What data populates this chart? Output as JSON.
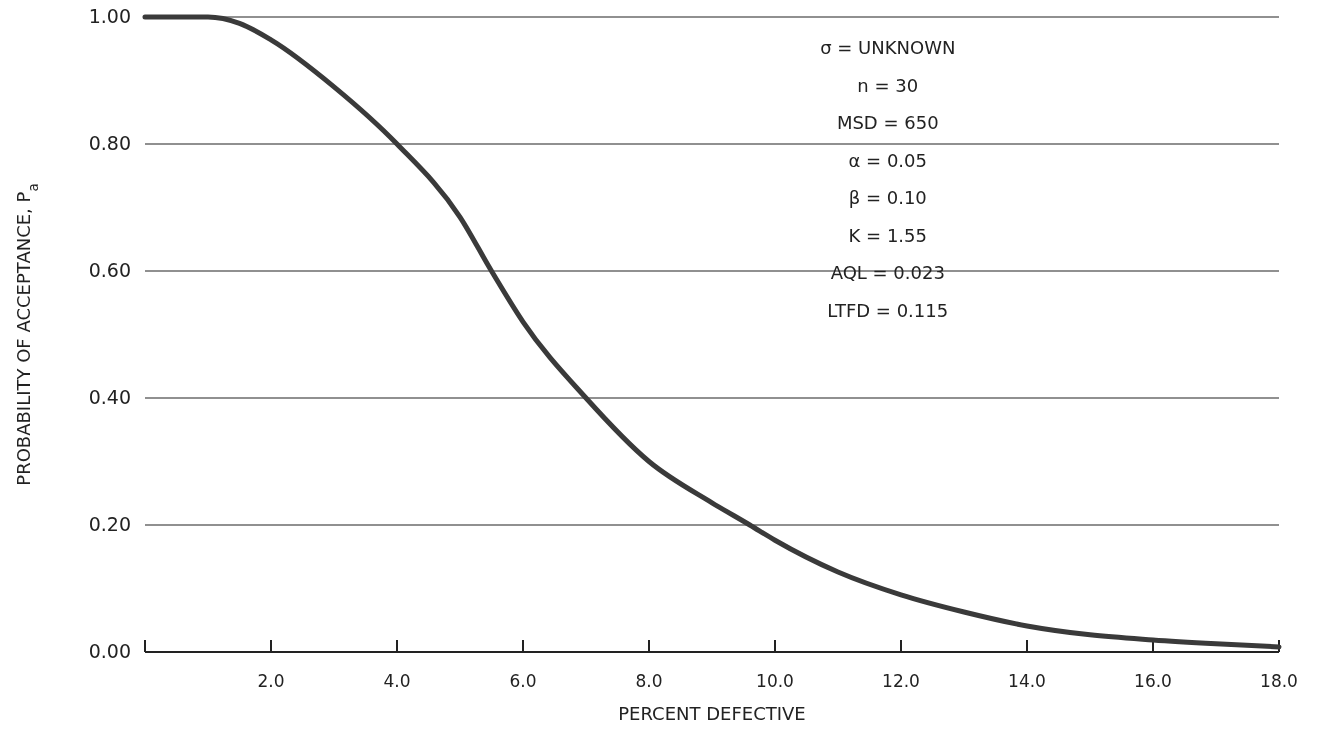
{
  "chart_data": {
    "type": "line",
    "xlabel": "PERCENT DEFECTIVE",
    "ylabel": "PROBABILITY OF ACCEPTANCE, P$_{a}$",
    "x": [
      0,
      1,
      1.5,
      2,
      3,
      4,
      5,
      5.5,
      6,
      7,
      8,
      9,
      9.6,
      10,
      11,
      12,
      13,
      14,
      15,
      16,
      17,
      18
    ],
    "series": [
      {
        "color": "#3a3a3a",
        "values": [
          1.0,
          1.0,
          0.99,
          0.964,
          0.89,
          0.8,
          0.685,
          0.6,
          0.52,
          0.4,
          0.3,
          0.235,
          0.2,
          0.176,
          0.126,
          0.09,
          0.063,
          0.041,
          0.027,
          0.019,
          0.013,
          0.008
        ]
      }
    ],
    "xlim": [
      0,
      18
    ],
    "xticks": [
      {
        "value": 0,
        "label": null
      },
      {
        "value": 2,
        "label": "2.0"
      },
      {
        "value": 4,
        "label": "4.0"
      },
      {
        "value": 6,
        "label": "6.0"
      },
      {
        "value": 8,
        "label": "8.0"
      },
      {
        "value": 10,
        "label": "10.0"
      },
      {
        "value": 12,
        "label": "12.0"
      },
      {
        "value": 14,
        "label": "14.0"
      },
      {
        "value": 16,
        "label": "16.0"
      },
      {
        "value": 18,
        "label": "18.0"
      }
    ],
    "ylim": [
      0,
      1
    ],
    "yticks": [
      {
        "value": 0,
        "label": "0.00"
      },
      {
        "value": 0.2,
        "label": "0.20"
      },
      {
        "value": 0.4,
        "label": "0.40"
      },
      {
        "value": 0.6,
        "label": "0.60"
      },
      {
        "value": 0.8,
        "label": "0.80"
      },
      {
        "value": 1,
        "label": "1.00"
      }
    ],
    "grid": "y",
    "line_style": "solid",
    "marker": "none",
    "annotations": [
      "σ = UNKNOWN",
      "n = 30",
      "MSD = 650",
      "α = 0.05",
      "β = 0.10",
      "K = 1.55",
      "AQL = 0.023",
      "LTFD = 0.115"
    ]
  }
}
